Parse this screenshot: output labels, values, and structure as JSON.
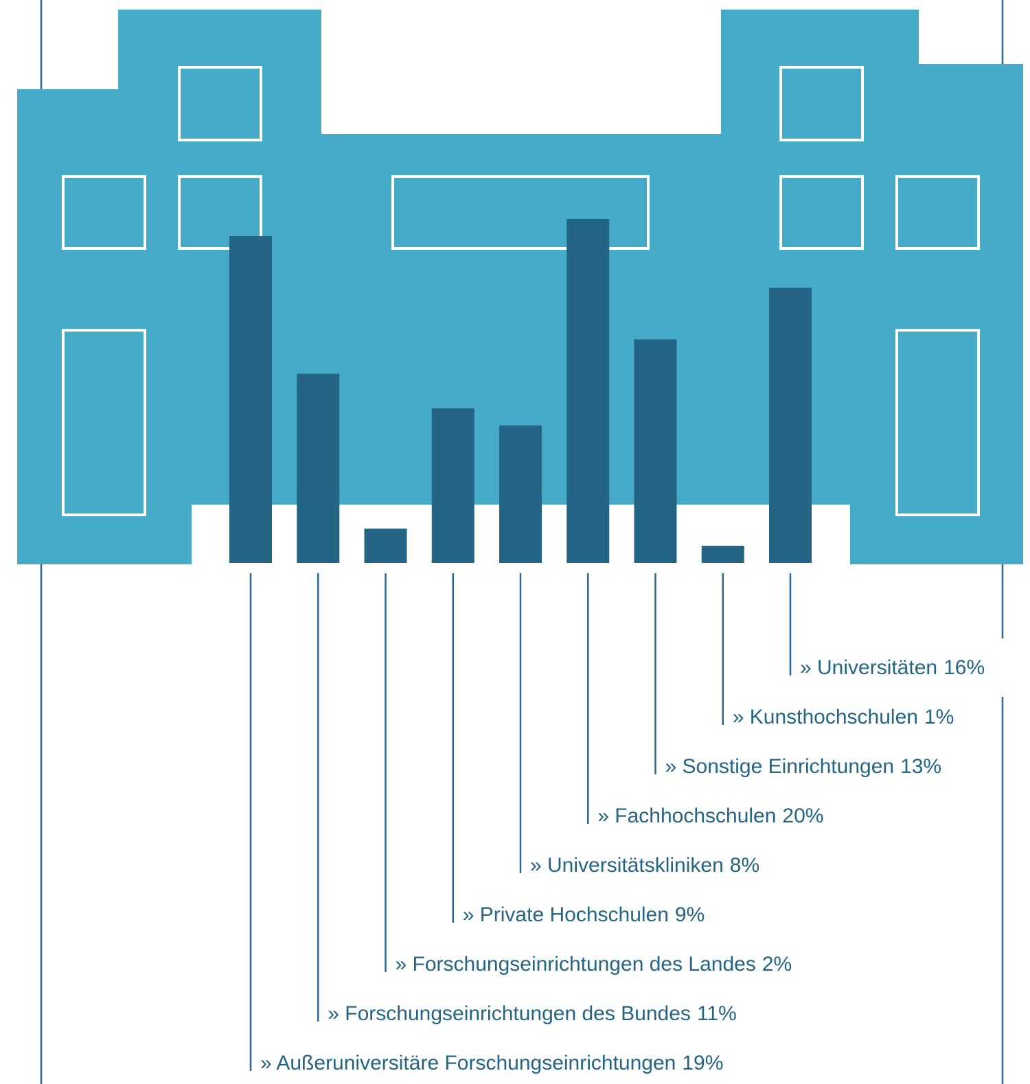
{
  "chart_data": {
    "type": "bar",
    "categories": [
      "» Außeruniversitäre Forschungseinrichtungen",
      "» Forschungseinrichtungen des Bundes",
      "» Forschungseinrichtungen des Landes",
      "» Private Hochschulen",
      "» Universitätskliniken",
      "» Fachhochschulen",
      "» Sonstige Einrichtungen",
      "» Kunsthochschulen",
      "» Universitäten"
    ],
    "values": [
      19,
      11,
      2,
      9,
      8,
      20,
      13,
      1,
      16
    ],
    "value_labels": [
      "19%",
      "11%",
      "2%",
      "9%",
      "8%",
      "20%",
      "13%",
      "1%",
      "16%"
    ],
    "color": "#246485"
  }
}
